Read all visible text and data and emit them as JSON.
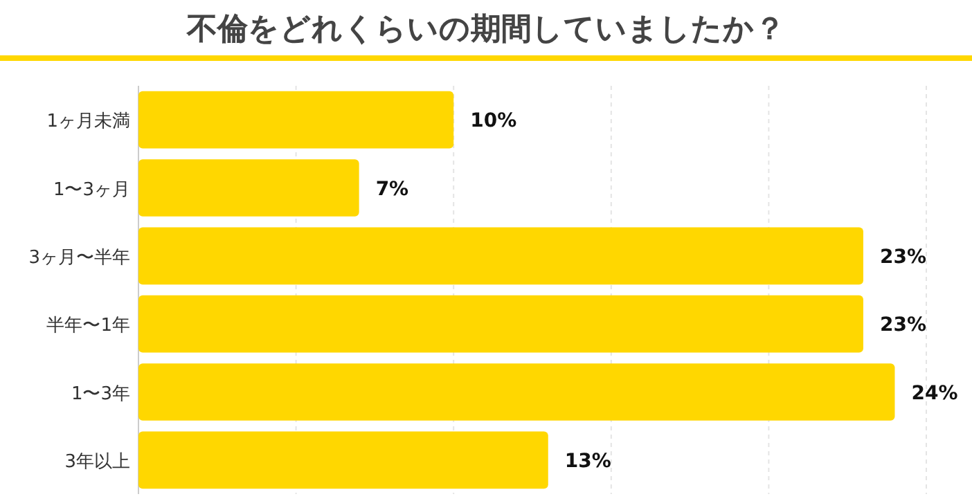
{
  "chart_data": {
    "type": "bar",
    "orientation": "horizontal",
    "title": "不倫をどれくらいの期間していましたか？",
    "categories": [
      "1ヶ月未満",
      "1〜3ヶ月",
      "3ヶ月〜半年",
      "半年〜1年",
      "1〜3年",
      "3年以上"
    ],
    "values": [
      10,
      7,
      23,
      23,
      24,
      13
    ],
    "value_labels": [
      "10%",
      "7%",
      "23%",
      "23%",
      "24%",
      "13%"
    ],
    "color": "#ffd700",
    "xlim": [
      0,
      25
    ],
    "xticks": [
      {
        "value": 0,
        "label": null
      },
      {
        "value": 5,
        "label": null
      },
      {
        "value": 10,
        "label": null
      },
      {
        "value": 15,
        "label": null
      },
      {
        "value": 20,
        "label": null
      },
      {
        "value": 25,
        "label": null
      }
    ],
    "grid": "x"
  }
}
